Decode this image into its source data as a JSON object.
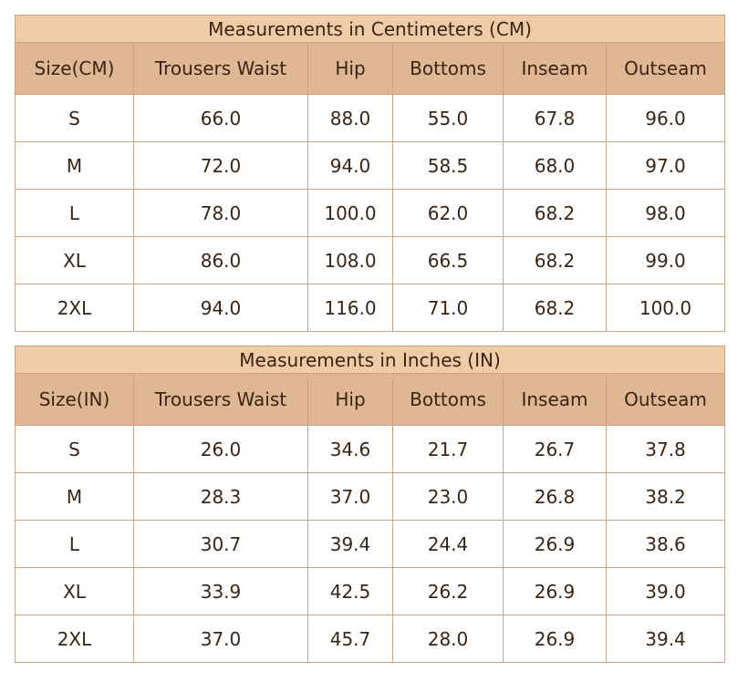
{
  "tables": [
    {
      "title": "Measurements in Centimeters (CM)",
      "header": [
        "Size(CM)",
        "Trousers Waist",
        "Hip",
        "Bottoms",
        "Inseam",
        "Outseam"
      ],
      "rows": [
        [
          "S",
          "66.0",
          "88.0",
          "55.0",
          "67.8",
          "96.0"
        ],
        [
          "M",
          "72.0",
          "94.0",
          "58.5",
          "68.0",
          "97.0"
        ],
        [
          "L",
          "78.0",
          "100.0",
          "62.0",
          "68.2",
          "98.0"
        ],
        [
          "XL",
          "86.0",
          "108.0",
          "66.5",
          "68.2",
          "99.0"
        ],
        [
          "2XL",
          "94.0",
          "116.0",
          "71.0",
          "68.2",
          "100.0"
        ]
      ]
    },
    {
      "title": "Measurements in Inches (IN)",
      "header": [
        "Size(IN)",
        "Trousers Waist",
        "Hip",
        "Bottoms",
        "Inseam",
        "Outseam"
      ],
      "rows": [
        [
          "S",
          "26.0",
          "34.6",
          "21.7",
          "26.7",
          "37.8"
        ],
        [
          "M",
          "28.3",
          "37.0",
          "23.0",
          "26.8",
          "38.2"
        ],
        [
          "L",
          "30.7",
          "39.4",
          "24.4",
          "26.9",
          "38.6"
        ],
        [
          "XL",
          "33.9",
          "42.5",
          "26.2",
          "26.9",
          "39.0"
        ],
        [
          "2XL",
          "37.0",
          "45.7",
          "28.0",
          "26.9",
          "39.4"
        ]
      ]
    }
  ]
}
